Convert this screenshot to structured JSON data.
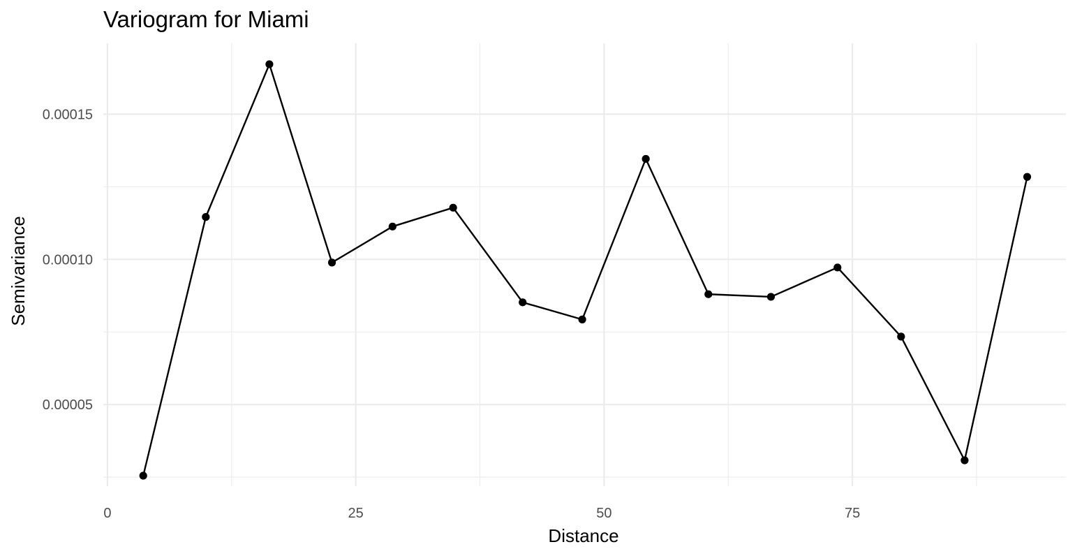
{
  "chart_data": {
    "type": "line",
    "title": "Variogram for Miami",
    "xlabel": "Distance",
    "ylabel": "Semivariance",
    "xlim": [
      -0.42,
      96.5
    ],
    "ylim": [
      2.19e-05,
      0.0001744
    ],
    "x_ticks": [
      {
        "value": 0,
        "label": "0"
      },
      {
        "value": 25,
        "label": "25"
      },
      {
        "value": 50,
        "label": "50"
      },
      {
        "value": 75,
        "label": "75"
      }
    ],
    "x_minor_ticks": [
      12.5,
      37.5,
      62.5,
      87.5
    ],
    "y_ticks": [
      {
        "value": 5e-05,
        "label": "0.00005"
      },
      {
        "value": 0.0001,
        "label": "0.00010"
      },
      {
        "value": 0.00015,
        "label": "0.00015"
      }
    ],
    "y_minor_ticks": [
      2.5e-05,
      7.5e-05,
      0.000125
    ],
    "grid": true,
    "legend": "none",
    "series": [
      {
        "name": "semivariance",
        "color": "#000000",
        "x": [
          3.6,
          9.9,
          16.3,
          22.6,
          28.7,
          34.8,
          41.8,
          47.8,
          54.2,
          60.5,
          66.8,
          73.5,
          79.9,
          86.3,
          92.6
        ],
        "y": [
          2.55e-05,
          0.0001146,
          0.0001672,
          9.89e-05,
          0.0001113,
          0.0001178,
          8.52e-05,
          7.93e-05,
          0.0001346,
          8.8e-05,
          8.71e-05,
          9.72e-05,
          7.34e-05,
          3.08e-05,
          0.0001284
        ]
      }
    ]
  }
}
